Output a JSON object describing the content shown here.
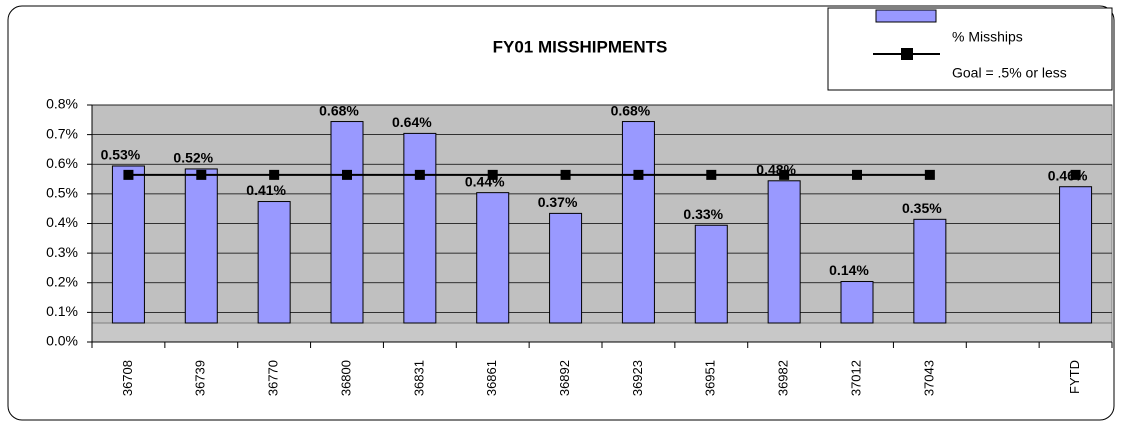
{
  "chart_data": {
    "type": "bar",
    "title": "FY01 MISSHIPMENTS",
    "categories": [
      "36708",
      "36739",
      "36770",
      "36800",
      "36831",
      "36861",
      "36892",
      "36923",
      "36951",
      "36982",
      "37012",
      "37043",
      null,
      "FYTD"
    ],
    "series": [
      {
        "name": "% Misships",
        "type": "bar",
        "color": "#9999ff",
        "values": [
          0.53,
          0.52,
          0.41,
          0.68,
          0.64,
          0.44,
          0.37,
          0.68,
          0.33,
          0.48,
          0.14,
          0.35,
          null,
          0.46
        ],
        "value_labels": [
          "0.53%",
          "0.52%",
          "0.41%",
          "0.68%",
          "0.64%",
          "0.44%",
          "0.37%",
          "0.68%",
          "0.33%",
          "0.48%",
          "0.14%",
          "0.35%",
          null,
          "0.46%"
        ]
      },
      {
        "name": "Goal = .5% or less",
        "type": "line",
        "color": "#000000",
        "values": [
          0.5,
          0.5,
          0.5,
          0.5,
          0.5,
          0.5,
          0.5,
          0.5,
          0.5,
          0.5,
          0.5,
          0.5,
          null,
          0.5
        ]
      }
    ],
    "ylim": [
      0,
      0.8
    ],
    "yticks": [
      {
        "value": 0,
        "label": "0.0%"
      },
      {
        "value": 0.1,
        "label": "0.1%"
      },
      {
        "value": 0.2,
        "label": "0.2%"
      },
      {
        "value": 0.3,
        "label": "0.3%"
      },
      {
        "value": 0.4,
        "label": "0.4%"
      },
      {
        "value": 0.5,
        "label": "0.5%"
      },
      {
        "value": 0.6,
        "label": "0.6%"
      },
      {
        "value": 0.7,
        "label": "0.7%"
      },
      {
        "value": 0.8,
        "label": "0.8%"
      }
    ],
    "grid": true,
    "legend": "top-right"
  }
}
